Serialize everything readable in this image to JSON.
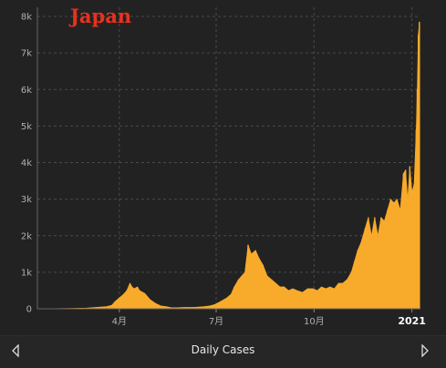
{
  "chart_data": {
    "type": "area",
    "title": "Japan",
    "xlabel": "",
    "ylabel": "",
    "series": [
      {
        "name": "",
        "color": "#f8ab2b",
        "points": [
          [
            "2020-01-15",
            0
          ],
          [
            "2020-02-01",
            5
          ],
          [
            "2020-02-15",
            10
          ],
          [
            "2020-03-01",
            20
          ],
          [
            "2020-03-10",
            40
          ],
          [
            "2020-03-20",
            60
          ],
          [
            "2020-03-25",
            100
          ],
          [
            "2020-03-28",
            200
          ],
          [
            "2020-04-01",
            300
          ],
          [
            "2020-04-05",
            400
          ],
          [
            "2020-04-08",
            500
          ],
          [
            "2020-04-11",
            700
          ],
          [
            "2020-04-13",
            600
          ],
          [
            "2020-04-15",
            550
          ],
          [
            "2020-04-18",
            600
          ],
          [
            "2020-04-20",
            500
          ],
          [
            "2020-04-25",
            420
          ],
          [
            "2020-04-30",
            250
          ],
          [
            "2020-05-05",
            150
          ],
          [
            "2020-05-10",
            80
          ],
          [
            "2020-05-15",
            60
          ],
          [
            "2020-05-20",
            30
          ],
          [
            "2020-05-25",
            30
          ],
          [
            "2020-06-01",
            40
          ],
          [
            "2020-06-10",
            40
          ],
          [
            "2020-06-20",
            60
          ],
          [
            "2020-06-25",
            80
          ],
          [
            "2020-06-30",
            120
          ],
          [
            "2020-07-05",
            200
          ],
          [
            "2020-07-08",
            250
          ],
          [
            "2020-07-11",
            300
          ],
          [
            "2020-07-15",
            400
          ],
          [
            "2020-07-18",
            600
          ],
          [
            "2020-07-22",
            800
          ],
          [
            "2020-07-25",
            900
          ],
          [
            "2020-07-28",
            1000
          ],
          [
            "2020-07-31",
            1750
          ],
          [
            "2020-08-03",
            1500
          ],
          [
            "2020-08-07",
            1600
          ],
          [
            "2020-08-10",
            1400
          ],
          [
            "2020-08-14",
            1200
          ],
          [
            "2020-08-18",
            900
          ],
          [
            "2020-08-22",
            800
          ],
          [
            "2020-08-26",
            700
          ],
          [
            "2020-08-30",
            600
          ],
          [
            "2020-09-03",
            600
          ],
          [
            "2020-09-07",
            500
          ],
          [
            "2020-09-11",
            550
          ],
          [
            "2020-09-15",
            500
          ],
          [
            "2020-09-20",
            450
          ],
          [
            "2020-09-25",
            550
          ],
          [
            "2020-09-30",
            550
          ],
          [
            "2020-10-04",
            500
          ],
          [
            "2020-10-08",
            600
          ],
          [
            "2020-10-12",
            550
          ],
          [
            "2020-10-16",
            600
          ],
          [
            "2020-10-20",
            550
          ],
          [
            "2020-10-24",
            700
          ],
          [
            "2020-10-28",
            700
          ],
          [
            "2020-11-01",
            800
          ],
          [
            "2020-11-05",
            1000
          ],
          [
            "2020-11-08",
            1300
          ],
          [
            "2020-11-11",
            1600
          ],
          [
            "2020-11-14",
            1800
          ],
          [
            "2020-11-18",
            2200
          ],
          [
            "2020-11-21",
            2500
          ],
          [
            "2020-11-24",
            2000
          ],
          [
            "2020-11-27",
            2500
          ],
          [
            "2020-11-30",
            2000
          ],
          [
            "2020-12-03",
            2500
          ],
          [
            "2020-12-06",
            2400
          ],
          [
            "2020-12-09",
            2700
          ],
          [
            "2020-12-12",
            3000
          ],
          [
            "2020-12-15",
            2900
          ],
          [
            "2020-12-18",
            3000
          ],
          [
            "2020-12-21",
            2700
          ],
          [
            "2020-12-24",
            3700
          ],
          [
            "2020-12-26",
            3800
          ],
          [
            "2020-12-28",
            3000
          ],
          [
            "2020-12-30",
            3900
          ],
          [
            "2021-01-01",
            3200
          ],
          [
            "2021-01-03",
            3400
          ],
          [
            "2021-01-05",
            4900
          ],
          [
            "2021-01-06",
            6000
          ],
          [
            "2021-01-07",
            7500
          ],
          [
            "2021-01-08",
            7850
          ]
        ]
      }
    ],
    "x_range": [
      "2020-01-15",
      "2021-01-09"
    ],
    "ylim": [
      0,
      8000
    ],
    "y_ticks": [
      0,
      1000,
      2000,
      3000,
      4000,
      5000,
      6000,
      7000,
      8000
    ],
    "y_tick_labels": [
      "0",
      "1k",
      "2k",
      "3k",
      "4k",
      "5k",
      "6k",
      "7k",
      "8k"
    ],
    "x_ticks": [
      {
        "date": "2020-04-01",
        "label": "4月",
        "bold": false
      },
      {
        "date": "2020-07-01",
        "label": "7月",
        "bold": false
      },
      {
        "date": "2020-10-01",
        "label": "10月",
        "bold": false
      },
      {
        "date": "2021-01-01",
        "label": "2021",
        "bold": true
      }
    ],
    "grid": true,
    "background": "#222222",
    "title_color": "#e8321e"
  },
  "footer": {
    "label": "Daily Cases",
    "prev_icon": "chevron-left-icon",
    "next_icon": "chevron-right-icon"
  }
}
